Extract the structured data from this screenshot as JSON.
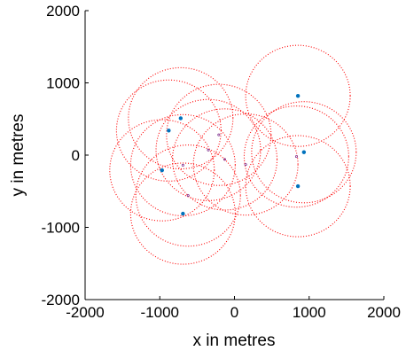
{
  "chart_data": {
    "type": "scatter",
    "title": "",
    "xlabel": "x in metres",
    "ylabel": "y in metres",
    "xlim": [
      -2000,
      2000
    ],
    "ylim": [
      -2000,
      2000
    ],
    "xticks": [
      -2000,
      -1000,
      0,
      1000,
      2000
    ],
    "yticks": [
      -2000,
      -1000,
      0,
      1000,
      2000
    ],
    "xtick_labels": [
      "-2000",
      "-1000",
      "0",
      "1000",
      "2000"
    ],
    "ytick_labels": [
      "-2000",
      "-1000",
      "0",
      "1000",
      "2000"
    ],
    "grid": false,
    "legend": "none",
    "series": [
      {
        "kind": "points",
        "color": "#0072BD",
        "marker": "filled-circle",
        "points": [
          {
            "x": 850,
            "y": 820
          },
          {
            "x": -720,
            "y": 510
          },
          {
            "x": -880,
            "y": 340
          },
          {
            "x": 930,
            "y": 40
          },
          {
            "x": -970,
            "y": -210
          },
          {
            "x": 850,
            "y": -430
          },
          {
            "x": -690,
            "y": -810
          }
        ]
      },
      {
        "kind": "points",
        "color": "#7E2F8E",
        "marker": "small-circle",
        "points": [
          {
            "x": -210,
            "y": 280
          },
          {
            "x": -690,
            "y": -140
          },
          {
            "x": 150,
            "y": -130
          },
          {
            "x": 830,
            "y": -20
          },
          {
            "x": -350,
            "y": 70
          },
          {
            "x": -620,
            "y": -560
          },
          {
            "x": -130,
            "y": -60
          }
        ]
      },
      {
        "kind": "circles",
        "color": "#FF0000",
        "line_style": "dotted",
        "radius": 700,
        "centers": [
          {
            "x": 850,
            "y": 820
          },
          {
            "x": -720,
            "y": 510
          },
          {
            "x": -880,
            "y": 340
          },
          {
            "x": 930,
            "y": 40
          },
          {
            "x": -970,
            "y": -210
          },
          {
            "x": 850,
            "y": -430
          },
          {
            "x": -690,
            "y": -810
          },
          {
            "x": -210,
            "y": 280
          },
          {
            "x": -690,
            "y": -140
          },
          {
            "x": 150,
            "y": -130
          },
          {
            "x": 830,
            "y": -20
          },
          {
            "x": -350,
            "y": 70
          },
          {
            "x": -620,
            "y": -560
          },
          {
            "x": -130,
            "y": -60
          }
        ]
      }
    ]
  }
}
